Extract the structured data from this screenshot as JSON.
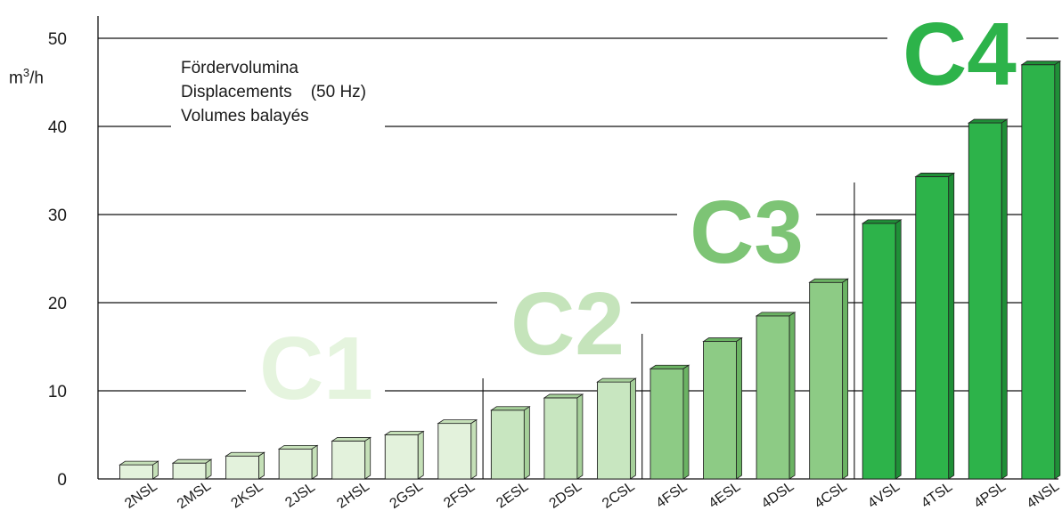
{
  "chart_data": {
    "type": "bar",
    "ylabel": {
      "base": "m",
      "sup": "3",
      "unit": "/h"
    },
    "legend_lines": [
      "Fördervolumina",
      "Displacements    (50 Hz)",
      "Volumes balayés"
    ],
    "ylim": [
      0,
      50
    ],
    "yticks": [
      0,
      10,
      20,
      30,
      40,
      50
    ],
    "grid": true,
    "categories": [
      "2NSL",
      "2MSL",
      "2KSL",
      "2JSL",
      "2HSL",
      "2GSL",
      "2FSL",
      "2ESL",
      "2DSL",
      "2CSL",
      "4FSL",
      "4ESL",
      "4DSL",
      "4CSL",
      "4VSL",
      "4TSL",
      "4PSL",
      "4NSL"
    ],
    "values": [
      1.6,
      1.8,
      2.6,
      3.4,
      4.3,
      5.0,
      6.3,
      7.8,
      9.2,
      11.0,
      12.5,
      15.6,
      18.5,
      22.3,
      29.0,
      34.3,
      40.4,
      47.0
    ],
    "groups": [
      {
        "name": "C1",
        "start": 0,
        "end": 6,
        "color": "#e3f2dc",
        "side": "#c5e0b8",
        "label_color": "#e5f4de"
      },
      {
        "name": "C2",
        "start": 7,
        "end": 9,
        "color": "#c8e6c0",
        "side": "#a6d09a",
        "label_color": "#c5e4bb"
      },
      {
        "name": "C3",
        "start": 10,
        "end": 13,
        "color": "#8dcb85",
        "side": "#6bb363",
        "label_color": "#7dc475"
      },
      {
        "name": "C4",
        "start": 14,
        "end": 17,
        "color": "#2db34a",
        "side": "#1f8f37",
        "label_color": "#2db34a"
      }
    ]
  }
}
